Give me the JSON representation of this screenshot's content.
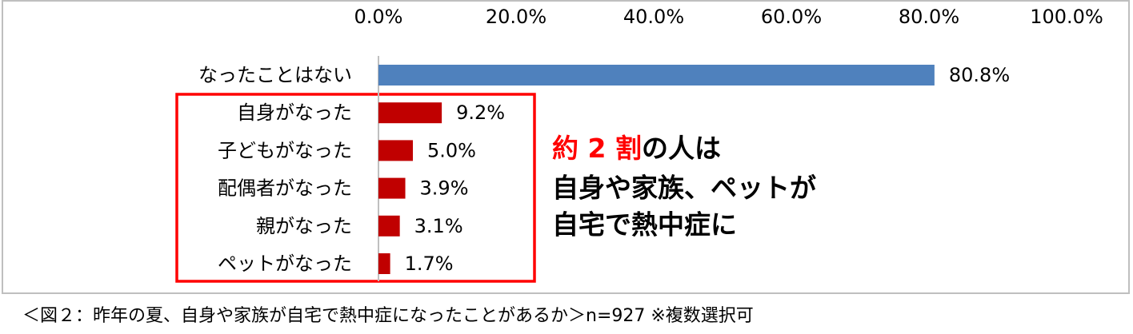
{
  "chart_data": {
    "type": "bar",
    "orientation": "horizontal",
    "categories": [
      "なったことはない",
      "自身がなった",
      "子どもがなった",
      "配偶者がなった",
      "親がなった",
      "ペットがなった"
    ],
    "values": [
      80.8,
      9.2,
      5.0,
      3.9,
      3.1,
      1.7
    ],
    "value_labels": [
      "80.8%",
      "9.2%",
      "5.0%",
      "3.9%",
      "3.1%",
      "1.7%"
    ],
    "colors": [
      "#4f81bd",
      "#c00000",
      "#c00000",
      "#c00000",
      "#c00000",
      "#c00000"
    ],
    "xlim": [
      0,
      100
    ],
    "xticks": [
      {
        "value": 0,
        "label": "0.0%"
      },
      {
        "value": 20,
        "label": "20.0%"
      },
      {
        "value": 40,
        "label": "40.0%"
      },
      {
        "value": 60,
        "label": "60.0%"
      },
      {
        "value": 80,
        "label": "80.0%"
      },
      {
        "value": 100,
        "label": "100.0%"
      }
    ],
    "grid": false,
    "annotation": {
      "highlight": "約 2 割",
      "lines": [
        "の人は",
        "自身や家族、ペットが",
        "自宅で熱中症に"
      ]
    },
    "caption": "＜図２：昨年の夏、自身や家族が自宅で熱中症になったことがあるか＞n=927 ※複数選択可"
  }
}
